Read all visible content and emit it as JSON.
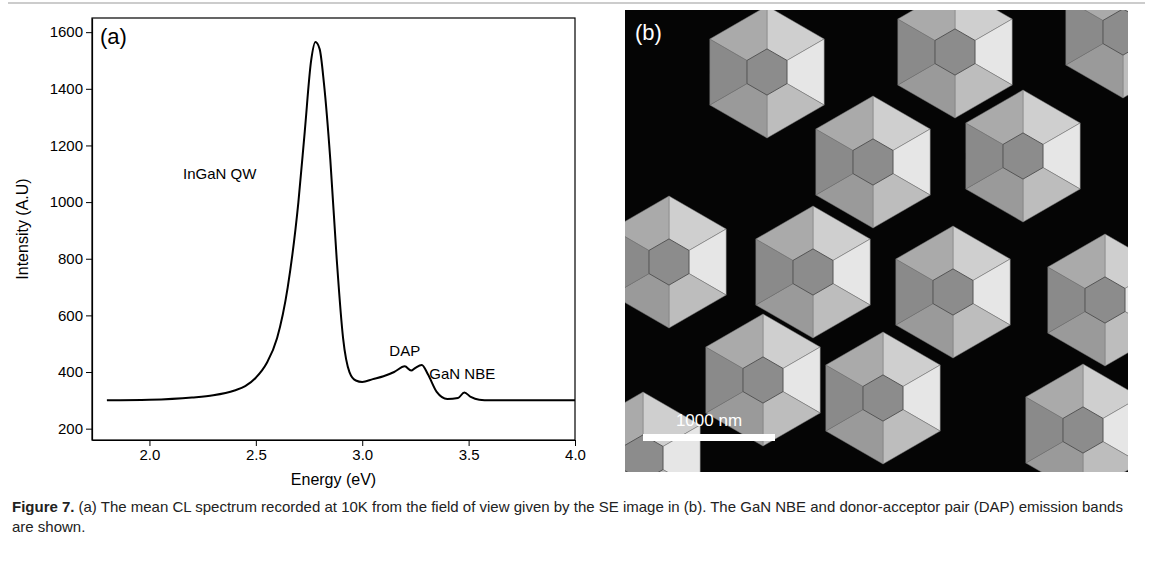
{
  "chart_data": {
    "type": "line",
    "panel_label": "(a)",
    "x_label": "Energy (eV)",
    "y_label": "Intensity (A.U)",
    "color": "#000000",
    "x": [
      1.8,
      2.0,
      2.2,
      2.3,
      2.4,
      2.45,
      2.5,
      2.55,
      2.6,
      2.65,
      2.7,
      2.73,
      2.76,
      2.78,
      2.8,
      2.82,
      2.85,
      2.88,
      2.91,
      2.94,
      2.97,
      3.0,
      3.05,
      3.1,
      3.15,
      3.2,
      3.23,
      3.25,
      3.28,
      3.31,
      3.35,
      3.4,
      3.45,
      3.48,
      3.51,
      3.55,
      3.6,
      4.0
    ],
    "values": [
      300,
      302,
      310,
      318,
      335,
      350,
      380,
      430,
      520,
      700,
      1000,
      1250,
      1500,
      1565,
      1540,
      1420,
      1150,
      800,
      520,
      400,
      370,
      365,
      375,
      385,
      400,
      420,
      405,
      415,
      425,
      390,
      330,
      305,
      308,
      328,
      312,
      302,
      300,
      300
    ],
    "xlim": [
      1.73,
      4.0
    ],
    "xticks": [
      {
        "value": 2,
        "label": "2.0"
      },
      {
        "value": 2.5,
        "label": "2.5"
      },
      {
        "value": 3,
        "label": "3.0"
      },
      {
        "value": 3.5,
        "label": "3.5"
      },
      {
        "value": 4,
        "label": "4.0"
      }
    ],
    "ylim": [
      160,
      1650
    ],
    "yticks": [
      200,
      400,
      600,
      800,
      1000,
      1200,
      1400,
      1600
    ],
    "grid": false,
    "annotations": [
      {
        "text": "InGaN QW",
        "x": 2.33,
        "y": 1080
      },
      {
        "text": "DAP",
        "x": 3.2,
        "y": 455
      },
      {
        "text": "GaN NBE",
        "x": 3.47,
        "y": 375
      }
    ]
  },
  "image_panel": {
    "panel_label": "(b)",
    "scale_bar": "1000 nm"
  },
  "caption": {
    "label": "Figure 7.",
    "text": "(a) The mean CL spectrum recorded at 10K from the field of view given by the SE image in (b). The GaN NBE and donor-acceptor pair (DAP) emission bands are shown."
  }
}
